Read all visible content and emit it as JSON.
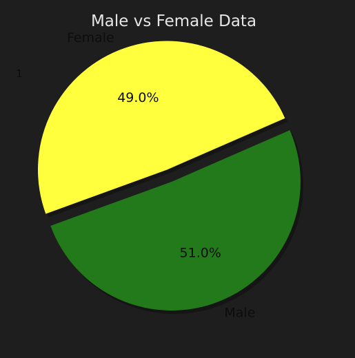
{
  "chart_data": {
    "type": "pie",
    "title": "Male vs Female Data",
    "categories": [
      "Male",
      "Female"
    ],
    "values": [
      51.0,
      49.0
    ],
    "percent_labels": [
      "51.0%",
      "49.0%"
    ],
    "colors": [
      "#237a1a",
      "#ffff3e"
    ],
    "explode": [
      0,
      0.1
    ],
    "start_angle_deg": 200,
    "shadow": true,
    "legend": "none",
    "stray_mark": "1"
  }
}
